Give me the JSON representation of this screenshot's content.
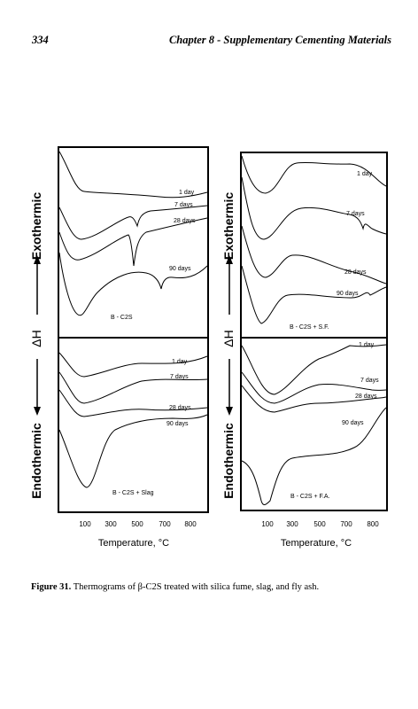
{
  "header": {
    "page_number": "334",
    "chapter_title": "Chapter 8 - Supplementary Cementing Materials"
  },
  "figure": {
    "axis": {
      "y_top": "Exothermic",
      "y_mid": "ΔH",
      "y_bottom": "Endothermic",
      "x_title": "Temperature, °C",
      "x_ticks": [
        "100",
        "300",
        "500",
        "700",
        "800"
      ]
    },
    "panels": {
      "top_left": {
        "name": "B - C2S",
        "curves": [
          "1 day",
          "7 days",
          "28 days",
          "90 days"
        ]
      },
      "bottom_left": {
        "name": "B - C2S + Slag",
        "curves": [
          "1 day",
          "7 days",
          "28 days",
          "90 days"
        ]
      },
      "top_right": {
        "name": "B - C2S + S.F.",
        "curves": [
          "1 day",
          "7 days",
          "28 days",
          "90 days"
        ]
      },
      "bottom_right": {
        "name": "B - C2S + F.A.",
        "curves": [
          "1 day",
          "7 days",
          "28 days",
          "90 days"
        ]
      }
    }
  },
  "caption": {
    "label": "Figure 31.",
    "text": " Thermograms of β-C2S treated with silica fume, slag, and fly ash."
  }
}
